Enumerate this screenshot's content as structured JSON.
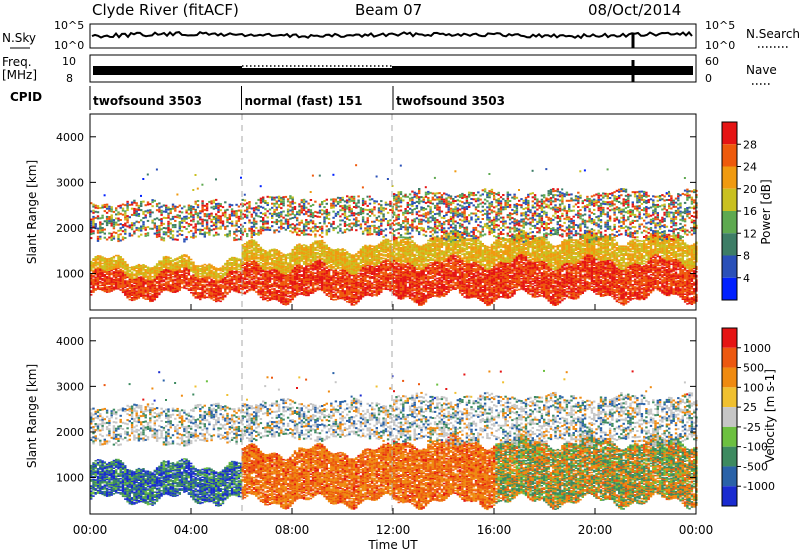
{
  "header": {
    "station": "Clyde River (fitACF)",
    "beam": "Beam 07",
    "date": "08/Oct/2014"
  },
  "top_panels": {
    "nsky_label": "N.Sky",
    "nsky_ticks": [
      "10^5",
      "10^0"
    ],
    "nsearch_label": "N.Search",
    "nsearch_ticks": [
      "10^5",
      "10^0"
    ],
    "freq_label": "Freq.",
    "freq_unit": "[MHz]",
    "freq_ticks": [
      "10",
      "8"
    ],
    "nave_label": "Nave",
    "nave_ticks": [
      "60",
      "0"
    ],
    "cpid_label": "CPID",
    "cpid_segments": [
      {
        "label": "twofsound 3503",
        "start_h": 0,
        "end_h": 6
      },
      {
        "label": "normal (fast) 151",
        "start_h": 6,
        "end_h": 12
      },
      {
        "label": "twofsound 3503",
        "start_h": 12,
        "end_h": 24
      }
    ]
  },
  "chart_data": [
    {
      "type": "heatmap",
      "parameter": "Power",
      "ylabel": "Slant Range [km]",
      "xlim": [
        0,
        24
      ],
      "ylim": [
        200,
        4500
      ],
      "yticks": [
        "1000",
        "2000",
        "3000",
        "4000"
      ],
      "colorbar_label": "Power [dB]",
      "colorbar_ticks": [
        "28",
        "24",
        "20",
        "16",
        "12",
        "8",
        "4"
      ],
      "colorbar_colors": [
        "#0020ff",
        "#2a50b8",
        "#3d7d66",
        "#5ea950",
        "#c9c020",
        "#f09a10",
        "#ee5a0c",
        "#e51414"
      ],
      "ranges_km": [
        {
          "start_h": 0,
          "end_h": 6,
          "main_low": 550,
          "main_high": 1300,
          "upper_low": 1800,
          "upper_high": 2600
        },
        {
          "start_h": 6,
          "end_h": 12,
          "main_low": 500,
          "main_high": 1600,
          "upper_low": 1900,
          "upper_high": 2700
        },
        {
          "start_h": 12,
          "end_h": 24,
          "main_low": 500,
          "main_high": 1800,
          "upper_low": 1800,
          "upper_high": 2800
        }
      ]
    },
    {
      "type": "heatmap",
      "parameter": "Velocity",
      "ylabel": "Slant Range [km]",
      "xlim": [
        0,
        24
      ],
      "ylim": [
        200,
        4500
      ],
      "yticks": [
        "1000",
        "2000",
        "3000",
        "4000"
      ],
      "colorbar_label": "Velocity [m s-1]",
      "colorbar_ticks": [
        "1000",
        "500",
        "100",
        "25",
        "-25",
        "-100",
        "-500",
        "-1000"
      ],
      "colorbar_colors": [
        "#1a2bd0",
        "#2a62a8",
        "#3d8a60",
        "#6cc040",
        "#c6c6c6",
        "#f0c030",
        "#ef8a10",
        "#ec5810",
        "#e51414"
      ],
      "ranges_km": [
        {
          "start_h": 0,
          "end_h": 6,
          "main_low": 550,
          "main_high": 1300,
          "upper_low": 1800,
          "upper_high": 2600
        },
        {
          "start_h": 6,
          "end_h": 12,
          "main_low": 500,
          "main_high": 1600,
          "upper_low": 1900,
          "upper_high": 2700
        },
        {
          "start_h": 12,
          "end_h": 24,
          "main_low": 500,
          "main_high": 1800,
          "upper_low": 1800,
          "upper_high": 2800
        }
      ]
    }
  ],
  "x_axis": {
    "ticks": [
      "00:00",
      "04:00",
      "08:00",
      "12:00",
      "16:00",
      "20:00",
      "00:00"
    ],
    "xlabel": "Time UT"
  }
}
